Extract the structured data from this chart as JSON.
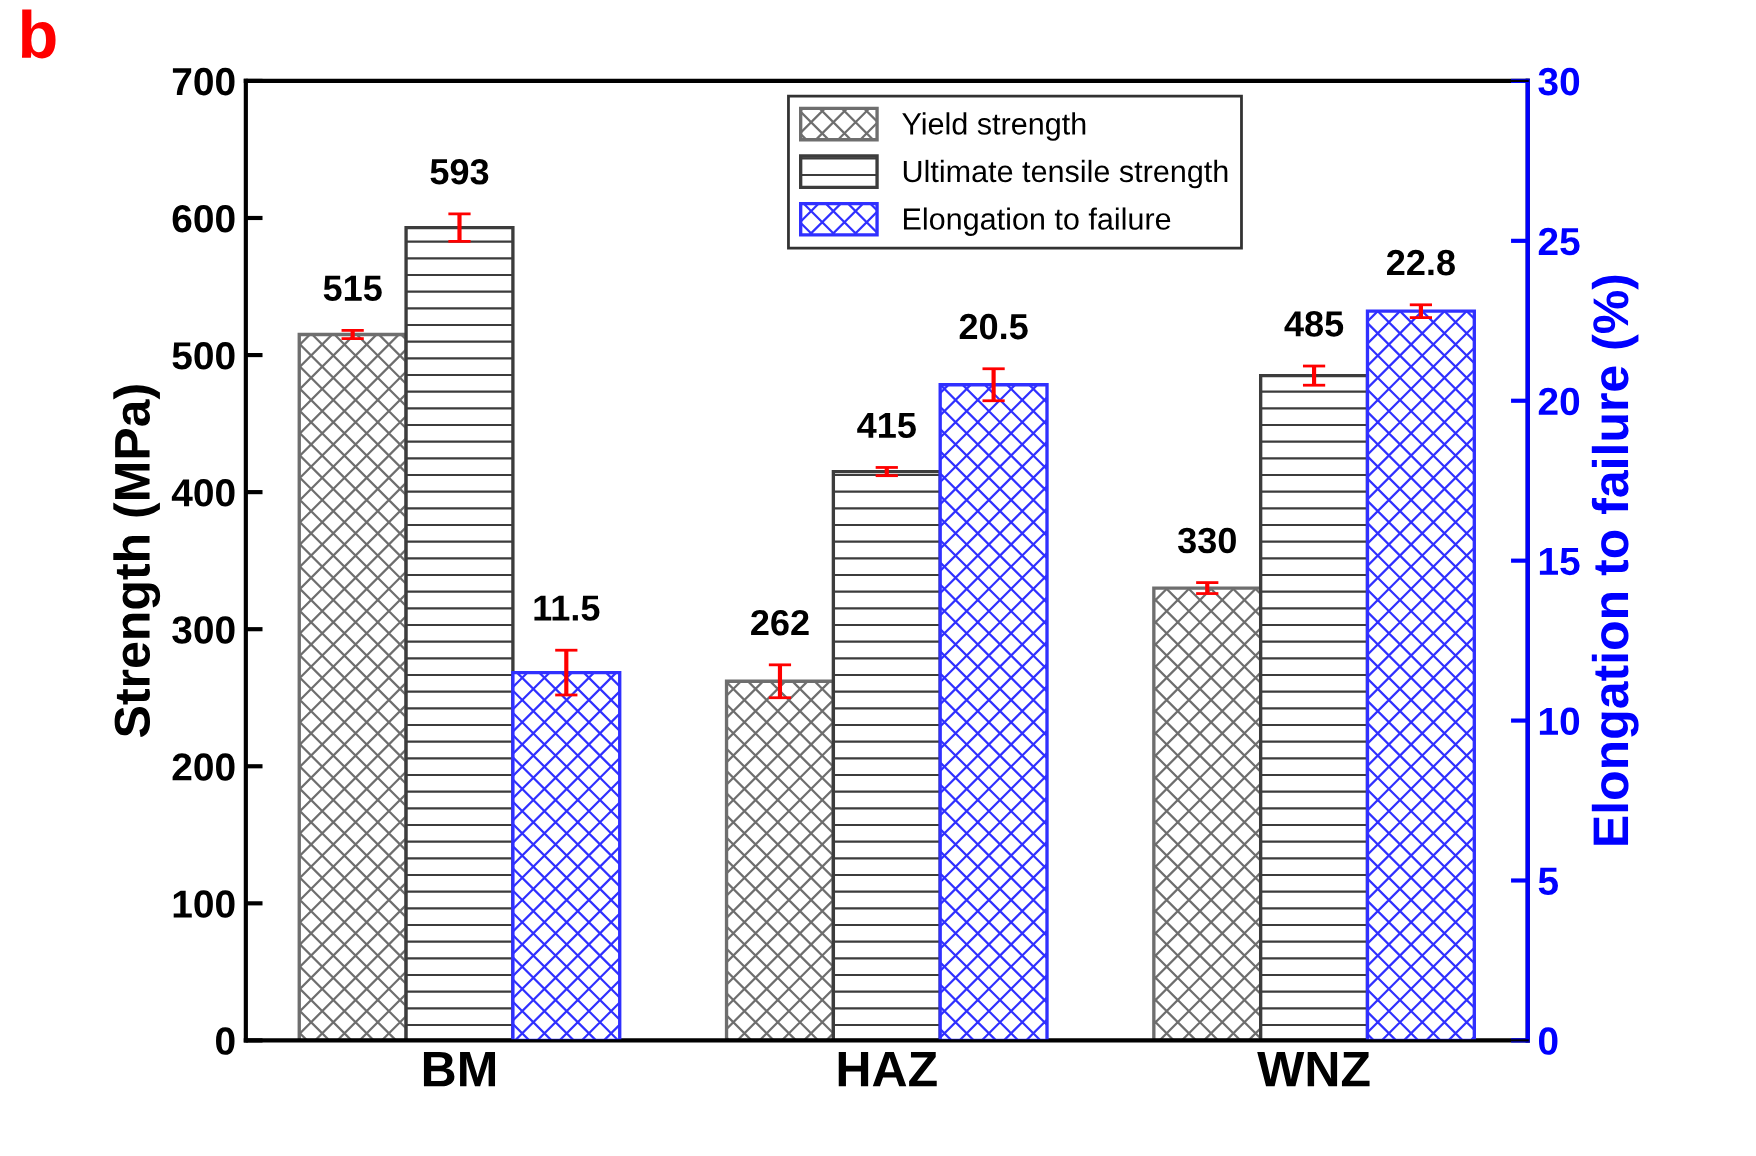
{
  "chart_data": {
    "type": "bar",
    "title": "b",
    "ylabel": "Strength (MPa)",
    "y2label": "Elongation to failure (%)",
    "categories": [
      "BM",
      "HAZ",
      "WNZ"
    ],
    "series": [
      {
        "name": "Yield strength",
        "color": "#6e6e6e",
        "values": [
          515,
          262,
          330
        ],
        "errors": [
          3,
          12,
          4
        ],
        "value_labels": [
          "515",
          "262",
          "330"
        ]
      },
      {
        "name": "Ultimate tensile strength",
        "color": "#3c3c3c",
        "values": [
          593,
          415,
          485
        ],
        "errors": [
          10,
          3,
          7
        ],
        "value_labels": [
          "593",
          "415",
          "485"
        ]
      },
      {
        "name": "Elongation to failure",
        "color": "#3030ff",
        "axis": "y2",
        "values": [
          11.5,
          20.5,
          22.8
        ],
        "errors": [
          0.7,
          0.5,
          0.2
        ],
        "value_labels": [
          "11.5",
          "20.5",
          "22.8"
        ]
      }
    ],
    "ylim": [
      0,
      700
    ],
    "yticks": [
      0,
      100,
      200,
      300,
      400,
      500,
      600,
      700
    ],
    "y2lim": [
      0,
      30
    ],
    "y2ticks": [
      0,
      5,
      10,
      15,
      20,
      25,
      30
    ],
    "legend": "top",
    "grid": false
  }
}
